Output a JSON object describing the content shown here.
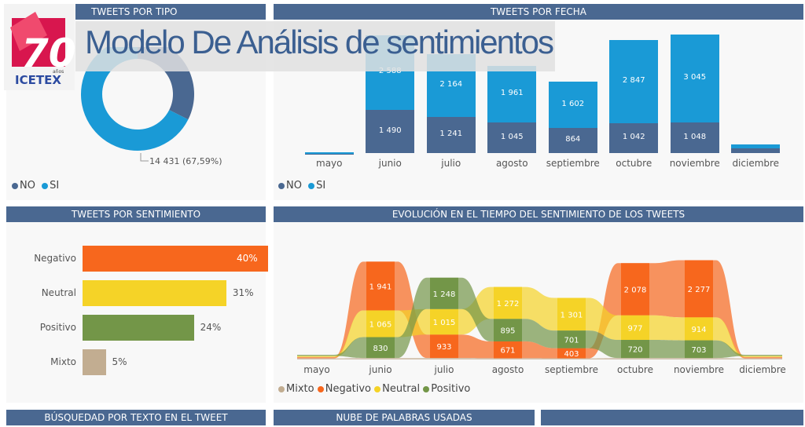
{
  "header": {
    "title": "Modelo De Análisis de sentimientos",
    "logo_number": "70",
    "logo_small": "años",
    "logo_brand": "ICETEX"
  },
  "panels": {
    "tipo": "TWEETS POR TIPO",
    "fecha": "TWEETS POR FECHA",
    "sentimiento": "TWEETS POR SENTIMIENTO",
    "evolucion": "EVOLUCIÓN EN EL TIEMPO DEL SENTIMIENTO DE LOS TWEETS",
    "busqueda": "BÚSQUEDAD POR TEXTO EN EL TWEET",
    "nube": "NUBE DE PALABRAS USADAS",
    "extra": ""
  },
  "colors": {
    "no": "#4a6891",
    "si": "#1a9ad6",
    "negativo": "#f7671d",
    "neutral": "#f5d327",
    "positivo": "#739648",
    "mixto": "#c2ad91"
  },
  "chart_data": [
    {
      "type": "pie",
      "title": "TWEETS POR TIPO",
      "categories": [
        "NO",
        "SI"
      ],
      "values": [
        6915,
        14431
      ],
      "labels": [
        "",
        "14 431 (67,59%)"
      ],
      "legend": [
        "NO",
        "SI"
      ]
    },
    {
      "type": "bar",
      "title": "TWEETS POR FECHA",
      "categories": [
        "mayo",
        "junio",
        "julio",
        "agosto",
        "septiembre",
        "octubre",
        "noviembre",
        "diciembre"
      ],
      "series": [
        {
          "name": "NO",
          "values": [
            0,
            1490,
            1241,
            1045,
            864,
            1042,
            1048,
            150
          ],
          "labels": [
            "",
            "1 490",
            "1 241",
            "1 045",
            "864",
            "1 042",
            "1 048",
            ""
          ]
        },
        {
          "name": "SI",
          "values": [
            30,
            2588,
            2164,
            1961,
            1602,
            2847,
            3045,
            150
          ],
          "labels": [
            "",
            "2 588",
            "2 164",
            "1 961",
            "1 602",
            "2 847",
            "3 045",
            ""
          ]
        }
      ],
      "legend": [
        "NO",
        "SI"
      ]
    },
    {
      "type": "bar",
      "title": "TWEETS POR SENTIMIENTO",
      "categories": [
        "Negativo",
        "Neutral",
        "Positivo",
        "Mixto"
      ],
      "values": [
        40,
        31,
        24,
        5
      ],
      "labels": [
        "40%",
        "31%",
        "24%",
        "5%"
      ]
    },
    {
      "type": "area",
      "title": "EVOLUCIÓN EN EL TIEMPO DEL SENTIMIENTO DE LOS TWEETS",
      "x": [
        "mayo",
        "junio",
        "julio",
        "agosto",
        "septiembre",
        "octubre",
        "noviembre",
        "diciembre"
      ],
      "series": [
        {
          "name": "Mixto",
          "values": [
            5,
            60,
            60,
            50,
            40,
            60,
            60,
            10
          ],
          "labels": [
            "",
            "",
            "",
            "",
            "",
            "",
            "",
            ""
          ]
        },
        {
          "name": "Negativo",
          "values": [
            5,
            1941,
            933,
            671,
            403,
            2078,
            2277,
            40
          ],
          "labels": [
            "",
            "1 941",
            "933",
            "671",
            "403",
            "2 078",
            "2 277",
            ""
          ]
        },
        {
          "name": "Neutral",
          "values": [
            5,
            1065,
            1015,
            1272,
            1301,
            977,
            914,
            40
          ],
          "labels": [
            "",
            "1 065",
            "1 015",
            "1 272",
            "1 301",
            "977",
            "914",
            ""
          ]
        },
        {
          "name": "Positivo",
          "values": [
            5,
            830,
            1248,
            895,
            701,
            720,
            703,
            40
          ],
          "labels": [
            "",
            "830",
            "1 248",
            "895",
            "701",
            "720",
            "703",
            ""
          ]
        }
      ],
      "legend": [
        "Mixto",
        "Negativo",
        "Neutral",
        "Positivo"
      ]
    }
  ]
}
